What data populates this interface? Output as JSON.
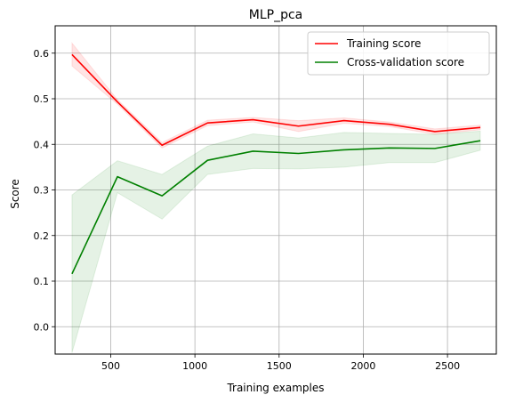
{
  "chart_data": {
    "type": "line",
    "title": "MLP_pca",
    "xlabel": "Training examples",
    "ylabel": "Score",
    "xlim": [
      170,
      2790
    ],
    "ylim": [
      -0.06,
      0.66
    ],
    "xticks": [
      500,
      1000,
      1500,
      2000,
      2500
    ],
    "yticks": [
      0.0,
      0.1,
      0.2,
      0.3,
      0.4,
      0.5,
      0.6
    ],
    "grid": true,
    "legend_position": "top-right",
    "x": [
      270,
      540,
      805,
      1075,
      1345,
      1615,
      1885,
      2155,
      2425,
      2695
    ],
    "series": [
      {
        "name": "Training score",
        "color": "#ff0000",
        "band_color": "#ff0000",
        "values": [
          0.597,
          0.493,
          0.398,
          0.447,
          0.454,
          0.44,
          0.452,
          0.444,
          0.428,
          0.437
        ],
        "lower": [
          0.572,
          0.488,
          0.392,
          0.441,
          0.449,
          0.428,
          0.446,
          0.439,
          0.422,
          0.432
        ],
        "upper": [
          0.622,
          0.498,
          0.404,
          0.453,
          0.459,
          0.452,
          0.458,
          0.449,
          0.434,
          0.442
        ]
      },
      {
        "name": "Cross-validation score",
        "color": "#008000",
        "band_color": "#008000",
        "values": [
          0.116,
          0.329,
          0.287,
          0.365,
          0.385,
          0.38,
          0.388,
          0.392,
          0.391,
          0.408
        ],
        "lower": [
          -0.057,
          0.294,
          0.236,
          0.334,
          0.347,
          0.346,
          0.35,
          0.36,
          0.36,
          0.387
        ],
        "upper": [
          0.289,
          0.364,
          0.334,
          0.396,
          0.423,
          0.414,
          0.426,
          0.424,
          0.422,
          0.429
        ]
      }
    ]
  }
}
